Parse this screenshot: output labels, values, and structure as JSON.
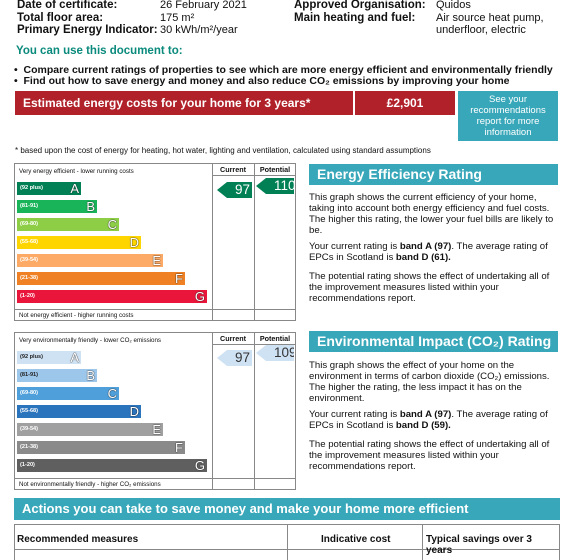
{
  "header": {
    "date_label": "Date of certificate:",
    "date_value": "26 February 2021",
    "area_label": "Total floor area:",
    "area_value": "175 m²",
    "energy_label": "Primary Energy Indicator:",
    "energy_value": "30 kWh/m²/year",
    "org_label": "Approved Organisation:",
    "org_value": "Quidos",
    "heating_label": "Main heating and fuel:",
    "heating_value_1": "Air source heat pump,",
    "heating_value_2": "underfloor, electric"
  },
  "use_section": {
    "title": "You can use this document to:",
    "bullet_1": "Compare current ratings of properties to see which are more energy efficient and environmentally friendly",
    "bullet_2": "Find out how to save energy and money and also reduce CO₂ emissions by improving your home"
  },
  "costs": {
    "label": "Estimated energy costs for your home for 3 years*",
    "value": "£2,901",
    "rec_line_1": "See your",
    "rec_line_2": "recommendations",
    "rec_line_3": "report for more",
    "rec_line_4": "information",
    "footnote": "* based upon the cost of energy for heating, hot water, lighting and ventilation, calculated using standard assumptions"
  },
  "ee_chart": {
    "top_text": "Very energy efficient - lower running costs",
    "bottom_text": "Not energy efficient - higher running costs",
    "col_current": "Current",
    "col_potential": "Potential",
    "current": "97",
    "potential": "110",
    "bands": [
      {
        "range": "(92 plus)",
        "letter": "A",
        "color": "#008054"
      },
      {
        "range": "(81-91)",
        "letter": "B",
        "color": "#19b459"
      },
      {
        "range": "(69-80)",
        "letter": "C",
        "color": "#8dce46"
      },
      {
        "range": "(55-68)",
        "letter": "D",
        "color": "#ffd500"
      },
      {
        "range": "(39-54)",
        "letter": "E",
        "color": "#fcaa65"
      },
      {
        "range": "(21-38)",
        "letter": "F",
        "color": "#ef8023"
      },
      {
        "range": "(1-20)",
        "letter": "G",
        "color": "#e9153b"
      }
    ]
  },
  "ei_chart": {
    "top_text": "Very environmentally friendly - lower CO₂ emissions",
    "bottom_text": "Not environmentally friendly - higher CO₂ emissions",
    "col_current": "Current",
    "col_potential": "Potential",
    "current": "97",
    "potential": "109",
    "bands": [
      {
        "range": "(92 plus)",
        "letter": "A",
        "color": "#cfe2f4"
      },
      {
        "range": "(81-91)",
        "letter": "B",
        "color": "#9cc6ea"
      },
      {
        "range": "(69-80)",
        "letter": "C",
        "color": "#4f9fda"
      },
      {
        "range": "(55-68)",
        "letter": "D",
        "color": "#2a74bd"
      },
      {
        "range": "(39-54)",
        "letter": "E",
        "color": "#a0a0a0"
      },
      {
        "range": "(21-38)",
        "letter": "F",
        "color": "#8a8a8a"
      },
      {
        "range": "(1-20)",
        "letter": "G",
        "color": "#5f5f5f"
      }
    ]
  },
  "ee_text": {
    "title": "Energy Efficiency Rating",
    "p1": "This graph shows the current efficiency of your home, taking into account both energy efficiency and fuel costs. The higher this rating, the lower your fuel bills are likely to be.",
    "p2a": "Your current rating is ",
    "p2b": "band A (97)",
    "p2c": ". The average rating of EPCs in Scotland is ",
    "p2d": "band D (61).",
    "p3": "The potential rating shows the effect of undertaking all of the improvement measures listed within your recommendations report."
  },
  "ei_text": {
    "title": "Environmental Impact (CO₂) Rating",
    "p1": "This graph shows the effect of your home on the environment in terms of carbon dioxide (CO₂) emissions. The higher the rating, the less impact it has on the environment.",
    "p2a": "Your current rating is ",
    "p2b": "band A (97)",
    "p2c": ". The average rating of EPCs in Scotland is ",
    "p2d": "band D (59).",
    "p3": "The potential rating shows the effect of undertaking all of the improvement measures listed within your recommendations report."
  },
  "actions": {
    "title": "Actions you can take to save money and make your home more efficient",
    "col_1": "Recommended measures",
    "col_2": "Indicative cost",
    "col_3": "Typical savings over 3 years"
  },
  "colors": {
    "teal": "#37a7b9",
    "red_bar": "#b0212a",
    "ee_current_arrow": "#008054",
    "ee_potential_arrow": "#008054",
    "ei_arrow": "#cfe2f4"
  }
}
